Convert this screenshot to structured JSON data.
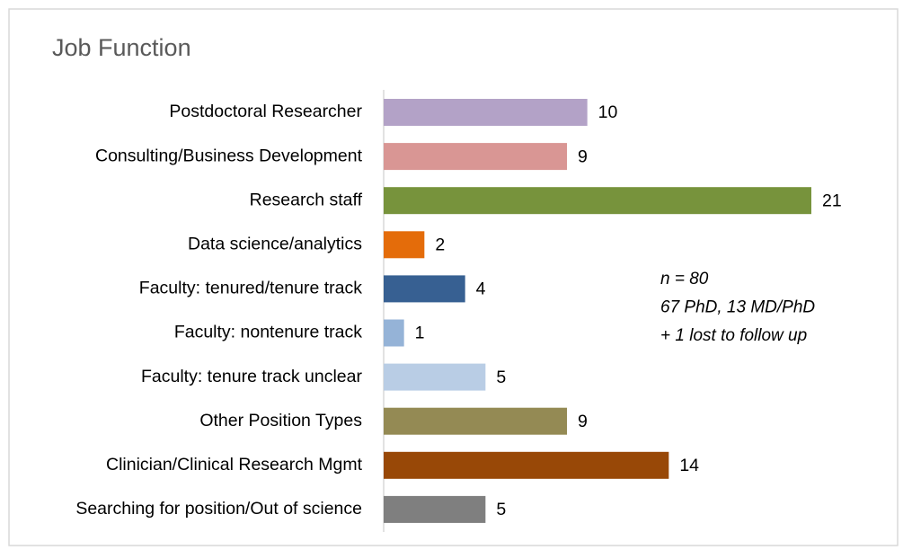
{
  "chart_data": {
    "type": "bar",
    "orientation": "horizontal",
    "title": "Job Function",
    "categories": [
      "Postdoctoral Researcher",
      "Consulting/Business Development",
      "Research staff",
      "Data science/analytics",
      "Faculty: tenured/tenure track",
      "Faculty: nontenure track",
      "Faculty: tenure track unclear",
      "Other Position Types",
      "Clinician/Clinical Research Mgmt",
      "Searching for position/Out of science"
    ],
    "values": [
      10,
      9,
      21,
      2,
      4,
      1,
      5,
      9,
      14,
      5
    ],
    "colors": [
      "#b3a2c7",
      "#d99694",
      "#77933c",
      "#e46c0a",
      "#376092",
      "#95b3d7",
      "#b9cde5",
      "#948a54",
      "#984807",
      "#7f7f7f"
    ],
    "annotation": [
      "n = 80",
      "67 PhD, 13 MD/PhD",
      "+ 1 lost to follow up"
    ]
  }
}
